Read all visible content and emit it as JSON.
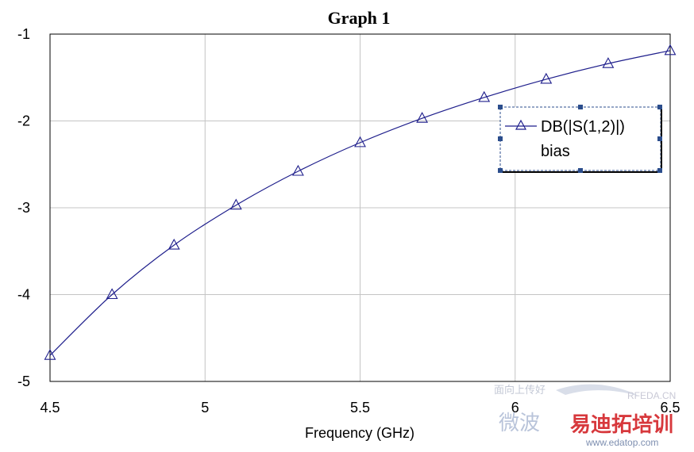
{
  "chart_data": {
    "type": "line",
    "title": "Graph 1",
    "xlabel": "Frequency (GHz)",
    "ylabel": "",
    "xlim": [
      4.5,
      6.5
    ],
    "ylim": [
      -5,
      -1
    ],
    "x_ticks": [
      "4.5",
      "5",
      "5.5",
      "6",
      "6.5"
    ],
    "y_ticks": [
      "-1",
      "-2",
      "-3",
      "-4",
      "-5"
    ],
    "grid": true,
    "legend": {
      "placement": "upper-right",
      "entries": [
        "DB(|S(1,2)|)",
        "bias"
      ]
    },
    "series": [
      {
        "name": "DB(|S(1,2)|)",
        "color": "#1f1f8c",
        "marker": "triangle",
        "x": [
          4.5,
          4.7,
          4.9,
          5.1,
          5.3,
          5.5,
          5.7,
          5.9,
          6.1,
          6.3,
          6.5
        ],
        "y": [
          -4.7,
          -4.0,
          -3.43,
          -2.97,
          -2.58,
          -2.25,
          -1.97,
          -1.73,
          -1.52,
          -1.34,
          -1.19
        ]
      }
    ]
  },
  "watermark": {
    "logo_en": "RFEDA.CN",
    "logo_cn_small": "面向上传好",
    "logo_cn_blue": "微波",
    "logo_cn_red": "易迪拓培训",
    "url": "www.edatop.com"
  }
}
